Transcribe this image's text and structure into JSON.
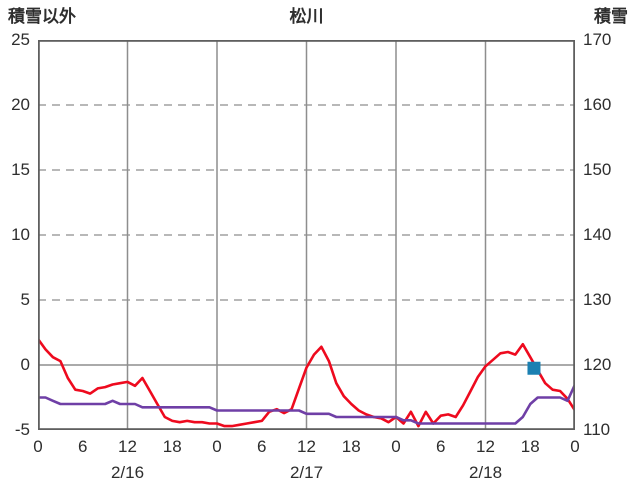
{
  "chart_data": {
    "type": "line",
    "title": "松川",
    "left_axis_title": "積雪以外",
    "right_axis_title": "積雪",
    "left_axis": {
      "min": -5,
      "max": 25,
      "ticks": [
        25,
        20,
        15,
        10,
        5,
        0,
        -5
      ]
    },
    "right_axis": {
      "min": 110,
      "max": 170,
      "ticks": [
        170,
        160,
        150,
        140,
        130,
        120,
        110
      ]
    },
    "x_axis": {
      "min_hour": 0,
      "max_hour": 72,
      "tick_hours": [
        0,
        6,
        12,
        18,
        24,
        30,
        36,
        42,
        48,
        54,
        60,
        66,
        72
      ],
      "tick_labels": [
        "0",
        "6",
        "12",
        "18",
        "0",
        "6",
        "12",
        "18",
        "0",
        "6",
        "12",
        "18",
        "0"
      ],
      "date_labels": [
        {
          "label": "2/16",
          "hour": 12
        },
        {
          "label": "2/17",
          "hour": 36
        },
        {
          "label": "2/18",
          "hour": 60
        }
      ]
    },
    "grid": {
      "v_solid_hours": [
        12,
        24,
        36,
        48,
        60
      ],
      "h_dashed_values": [
        20,
        15,
        10,
        5
      ],
      "h_solid_values": [
        0
      ]
    },
    "series": [
      {
        "name": "積雪以外",
        "axis": "left",
        "color": "#ee0a1e",
        "start_hour": 0,
        "step_hours": 1,
        "values": [
          2.0,
          1.2,
          0.6,
          0.3,
          -1.0,
          -1.9,
          -2.0,
          -2.2,
          -1.8,
          -1.7,
          -1.5,
          -1.4,
          -1.3,
          -1.6,
          -1.0,
          -2.0,
          -3.0,
          -4.0,
          -4.3,
          -4.4,
          -4.3,
          -4.4,
          -4.4,
          -4.5,
          -4.5,
          -4.7,
          -4.7,
          -4.6,
          -4.5,
          -4.4,
          -4.3,
          -3.6,
          -3.4,
          -3.7,
          -3.4,
          -1.8,
          -0.2,
          0.8,
          1.4,
          0.3,
          -1.4,
          -2.4,
          -3.0,
          -3.5,
          -3.8,
          -4.0,
          -4.1,
          -4.4,
          -4.0,
          -4.5,
          -3.6,
          -4.7,
          -3.6,
          -4.5,
          -3.9,
          -3.8,
          -4.0,
          -3.1,
          -2.0,
          -0.9,
          -0.1,
          0.4,
          0.9,
          1.0,
          0.8,
          1.6,
          0.6,
          -0.4,
          -1.4,
          -1.9,
          -2.0,
          -2.6,
          -3.5
        ]
      },
      {
        "name": "積雪",
        "axis": "right",
        "color": "#6f3fa6",
        "start_hour": 0,
        "step_hours": 1,
        "values": [
          115,
          115,
          114.5,
          114,
          114,
          114,
          114,
          114,
          114,
          114,
          114.5,
          114,
          114,
          114,
          113.5,
          113.5,
          113.5,
          113.5,
          113.5,
          113.5,
          113.5,
          113.5,
          113.5,
          113.5,
          113,
          113,
          113,
          113,
          113,
          113,
          113,
          113,
          113,
          113,
          113,
          113,
          112.5,
          112.5,
          112.5,
          112.5,
          112,
          112,
          112,
          112,
          112,
          112,
          112,
          112,
          112,
          111.5,
          111.5,
          111,
          111,
          111,
          111,
          111,
          111,
          111,
          111,
          111,
          111,
          111,
          111,
          111,
          111,
          112,
          114,
          115,
          115,
          115,
          115,
          114.5,
          117
        ]
      }
    ],
    "marker": {
      "shape": "square",
      "axis": "right",
      "hour": 66.5,
      "value": 119.5,
      "color": "#1b80b2",
      "size": 13
    },
    "colors": {
      "grid": "#8e8e8e",
      "border": "#5f5f5f",
      "text": "#2e2e2e"
    }
  }
}
